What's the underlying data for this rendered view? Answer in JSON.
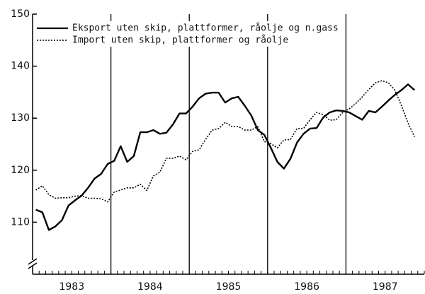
{
  "chart_data": {
    "type": "line",
    "x": [
      1983.042,
      1983.125,
      1983.208,
      1983.292,
      1983.375,
      1983.458,
      1983.542,
      1983.625,
      1983.708,
      1983.792,
      1983.875,
      1983.958,
      1984.042,
      1984.125,
      1984.208,
      1984.292,
      1984.375,
      1984.458,
      1984.542,
      1984.625,
      1984.708,
      1984.792,
      1984.875,
      1984.958,
      1985.042,
      1985.125,
      1985.208,
      1985.292,
      1985.375,
      1985.458,
      1985.542,
      1985.625,
      1985.708,
      1985.792,
      1985.875,
      1985.958,
      1986.042,
      1986.125,
      1986.208,
      1986.292,
      1986.375,
      1986.458,
      1986.542,
      1986.625,
      1986.708,
      1986.792,
      1986.875,
      1986.958,
      1987.042,
      1987.125,
      1987.208,
      1987.292,
      1987.375,
      1987.458,
      1987.542,
      1987.625,
      1987.708,
      1987.792,
      1987.875
    ],
    "series": [
      {
        "name": "Eksport uten skip, plattformer, råolje og n.gass",
        "color": "#000000",
        "dash": "solid",
        "values": [
          112.4,
          111.9,
          108.5,
          109.2,
          110.4,
          113.2,
          114.2,
          115.1,
          116.6,
          118.4,
          119.3,
          121.2,
          121.8,
          124.6,
          121.6,
          122.7,
          127.3,
          127.3,
          127.7,
          127.0,
          127.2,
          128.8,
          130.9,
          130.9,
          132.2,
          133.8,
          134.7,
          134.9,
          134.9,
          133.0,
          133.8,
          134.1,
          132.4,
          130.5,
          127.7,
          126.8,
          124.3,
          121.6,
          120.3,
          122.2,
          125.3,
          127.0,
          128.0,
          128.1,
          130.1,
          131.1,
          131.5,
          131.4,
          131.1,
          130.4,
          129.7,
          131.4,
          131.1,
          132.2,
          133.4,
          134.5,
          135.4,
          136.5,
          135.4
        ]
      },
      {
        "name": "Import uten skip, plattformer og råolje",
        "color": "#000000",
        "dash": "dotted",
        "values": [
          116.2,
          117.0,
          115.3,
          114.6,
          114.7,
          114.7,
          115.0,
          115.1,
          114.6,
          114.6,
          114.5,
          113.9,
          115.8,
          116.2,
          116.6,
          116.6,
          117.3,
          116.1,
          118.9,
          119.6,
          122.3,
          122.3,
          122.7,
          122.0,
          123.6,
          123.9,
          125.9,
          127.7,
          128.0,
          129.2,
          128.4,
          128.4,
          127.7,
          127.7,
          128.4,
          125.5,
          125.1,
          124.3,
          125.8,
          125.9,
          128.0,
          128.0,
          129.7,
          131.1,
          130.7,
          129.6,
          129.7,
          131.1,
          131.8,
          132.8,
          134.1,
          135.5,
          136.8,
          137.2,
          136.8,
          135.4,
          132.4,
          129.1,
          126.4
        ]
      }
    ],
    "xlim": [
      1983,
      1988
    ],
    "xticks": [
      {
        "value": 1983.5,
        "label": "1983"
      },
      {
        "value": 1984.5,
        "label": "1984"
      },
      {
        "value": 1985.5,
        "label": "1985"
      },
      {
        "value": 1986.5,
        "label": "1986"
      },
      {
        "value": 1987.5,
        "label": "1987"
      }
    ],
    "year_lines": [
      1984,
      1985,
      1986,
      1987
    ],
    "ylim": [
      100,
      150
    ],
    "yticks": [
      110,
      120,
      130,
      140,
      150
    ],
    "legend": "upper left"
  }
}
